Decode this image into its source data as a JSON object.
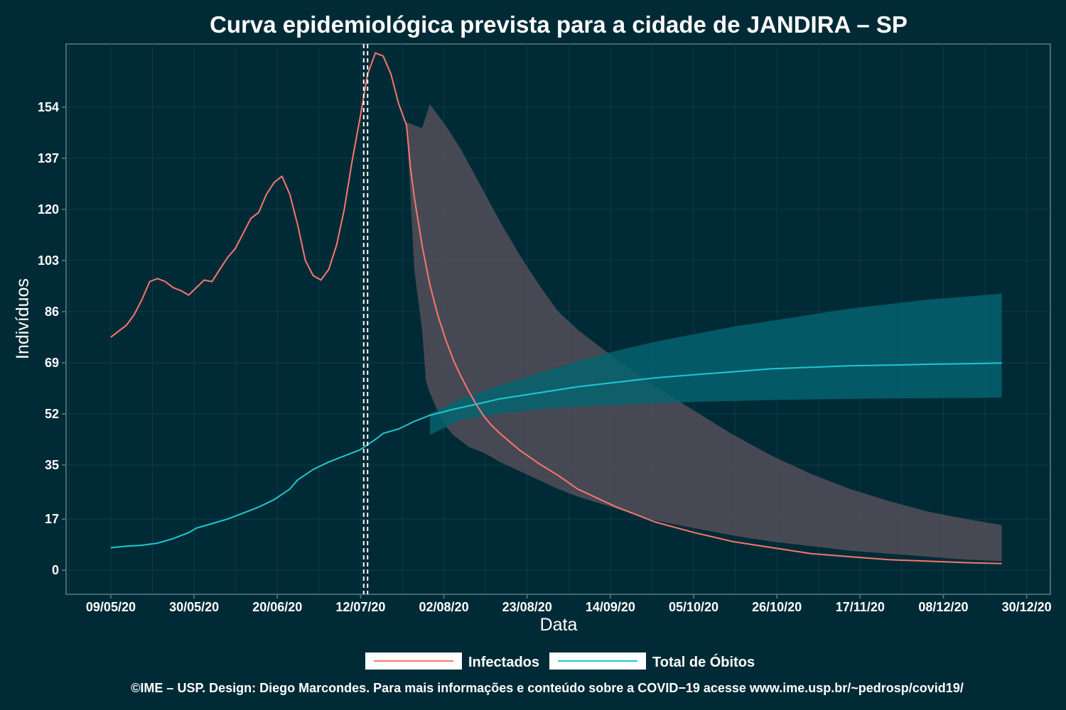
{
  "chart_data": {
    "type": "line",
    "title": "Curva epidemiológica prevista para a cidade de JANDIRA – SP",
    "xlabel": "Data",
    "ylabel": "Indivíduos",
    "x_ticks": [
      "09/05/20",
      "30/05/20",
      "20/06/20",
      "12/07/20",
      "02/08/20",
      "23/08/20",
      "14/09/20",
      "05/10/20",
      "26/10/20",
      "17/11/20",
      "08/12/20",
      "30/12/20"
    ],
    "y_ticks": [
      0,
      17,
      35,
      52,
      69,
      86,
      103,
      120,
      137,
      154
    ],
    "ylim": [
      -8,
      175
    ],
    "xlim_day": [
      -11.5,
      241.5
    ],
    "grid": true,
    "legend_position": "bottom",
    "forecast_start_markers_day": [
      65,
      66
    ],
    "series": [
      {
        "name": "Infectados",
        "color": "#f8766d",
        "points": [
          [
            0,
            77.5
          ],
          [
            2,
            79.5
          ],
          [
            4,
            81.5
          ],
          [
            6,
            85
          ],
          [
            8,
            90
          ],
          [
            10,
            96
          ],
          [
            12,
            97
          ],
          [
            14,
            96
          ],
          [
            16,
            94
          ],
          [
            18,
            93
          ],
          [
            20,
            91.5
          ],
          [
            22,
            94
          ],
          [
            24,
            96.5
          ],
          [
            26,
            96
          ],
          [
            28,
            100
          ],
          [
            30,
            104
          ],
          [
            32,
            107
          ],
          [
            34,
            112
          ],
          [
            36,
            117
          ],
          [
            38,
            119
          ],
          [
            40,
            125
          ],
          [
            42,
            129
          ],
          [
            44,
            131
          ],
          [
            46,
            125
          ],
          [
            48,
            115
          ],
          [
            50,
            103
          ],
          [
            52,
            98
          ],
          [
            54,
            96.5
          ],
          [
            56,
            100
          ],
          [
            58,
            108
          ],
          [
            60,
            120
          ],
          [
            62,
            136
          ],
          [
            64,
            150
          ],
          [
            66,
            165
          ],
          [
            68,
            172
          ],
          [
            70,
            171
          ],
          [
            72,
            165
          ],
          [
            74,
            155
          ],
          [
            76,
            148
          ],
          [
            77,
            134
          ],
          [
            78,
            124
          ],
          [
            80,
            108
          ],
          [
            82,
            95
          ],
          [
            84,
            85
          ],
          [
            86,
            77
          ],
          [
            88,
            70
          ],
          [
            90,
            64.5
          ],
          [
            92,
            59.5
          ],
          [
            94,
            55
          ],
          [
            96,
            51
          ],
          [
            98,
            48
          ],
          [
            100,
            45.5
          ],
          [
            105,
            40
          ],
          [
            110,
            35.5
          ],
          [
            115,
            31.5
          ],
          [
            120,
            27
          ],
          [
            130,
            21
          ],
          [
            140,
            16
          ],
          [
            150,
            12.5
          ],
          [
            160,
            9.5
          ],
          [
            170,
            7.5
          ],
          [
            180,
            5.5
          ],
          [
            190,
            4.5
          ],
          [
            200,
            3.5
          ],
          [
            210,
            3
          ],
          [
            220,
            2.5
          ],
          [
            229,
            2.2
          ]
        ]
      },
      {
        "name": "Total de Óbitos",
        "color": "#1ec8d4",
        "points": [
          [
            0,
            7.5
          ],
          [
            4,
            8
          ],
          [
            8,
            8.3
          ],
          [
            12,
            9
          ],
          [
            16,
            10.5
          ],
          [
            20,
            12.5
          ],
          [
            22,
            14
          ],
          [
            26,
            15.5
          ],
          [
            30,
            17
          ],
          [
            34,
            19
          ],
          [
            38,
            21
          ],
          [
            42,
            23.5
          ],
          [
            46,
            27
          ],
          [
            48,
            30
          ],
          [
            52,
            33.5
          ],
          [
            56,
            36
          ],
          [
            60,
            38
          ],
          [
            64,
            40
          ],
          [
            68,
            43.5
          ],
          [
            70,
            45.5
          ],
          [
            74,
            47
          ],
          [
            78,
            49.5
          ],
          [
            82,
            51.5
          ],
          [
            88,
            53.5
          ],
          [
            95,
            55.5
          ],
          [
            100,
            57
          ],
          [
            110,
            59
          ],
          [
            120,
            61
          ],
          [
            130,
            62.5
          ],
          [
            140,
            64
          ],
          [
            150,
            65
          ],
          [
            160,
            66
          ],
          [
            170,
            67
          ],
          [
            180,
            67.5
          ],
          [
            190,
            68
          ],
          [
            200,
            68.2
          ],
          [
            210,
            68.5
          ],
          [
            220,
            68.7
          ],
          [
            229,
            68.9
          ]
        ]
      }
    ],
    "bands": [
      {
        "name": "Infectados-band",
        "color": "#55505a",
        "upper": [
          [
            76,
            149
          ],
          [
            78,
            148
          ],
          [
            80,
            147
          ],
          [
            82,
            155
          ],
          [
            86,
            148
          ],
          [
            90,
            140
          ],
          [
            95,
            128
          ],
          [
            100,
            116
          ],
          [
            105,
            105
          ],
          [
            110,
            95
          ],
          [
            115,
            86
          ],
          [
            120,
            80
          ],
          [
            130,
            70
          ],
          [
            140,
            61
          ],
          [
            150,
            53
          ],
          [
            160,
            45
          ],
          [
            170,
            38
          ],
          [
            180,
            32
          ],
          [
            190,
            27
          ],
          [
            200,
            23
          ],
          [
            210,
            19.5
          ],
          [
            220,
            17
          ],
          [
            229,
            15
          ]
        ],
        "lower": [
          [
            76,
            149
          ],
          [
            78,
            100
          ],
          [
            80,
            80
          ],
          [
            81,
            63
          ],
          [
            82,
            59
          ],
          [
            84,
            53
          ],
          [
            86,
            48
          ],
          [
            88,
            45
          ],
          [
            90,
            43
          ],
          [
            92,
            41
          ],
          [
            94,
            40
          ],
          [
            96,
            39
          ],
          [
            98,
            37.5
          ],
          [
            100,
            36
          ],
          [
            105,
            33
          ],
          [
            110,
            30
          ],
          [
            115,
            27
          ],
          [
            120,
            24.5
          ],
          [
            130,
            20.5
          ],
          [
            140,
            16.5
          ],
          [
            150,
            14
          ],
          [
            160,
            11.5
          ],
          [
            170,
            9.5
          ],
          [
            180,
            8
          ],
          [
            190,
            6.5
          ],
          [
            200,
            5.5
          ],
          [
            210,
            4.5
          ],
          [
            220,
            3.5
          ],
          [
            229,
            3
          ]
        ]
      },
      {
        "name": "Obitos-band",
        "color": "#046470",
        "upper": [
          [
            82,
            52
          ],
          [
            90,
            57
          ],
          [
            100,
            61.5
          ],
          [
            110,
            65.5
          ],
          [
            120,
            69.5
          ],
          [
            130,
            73
          ],
          [
            140,
            76
          ],
          [
            150,
            78.5
          ],
          [
            160,
            81
          ],
          [
            170,
            83
          ],
          [
            180,
            85
          ],
          [
            190,
            87
          ],
          [
            200,
            88.5
          ],
          [
            210,
            90
          ],
          [
            220,
            91
          ],
          [
            229,
            92
          ]
        ],
        "lower": [
          [
            82,
            45
          ],
          [
            90,
            50
          ],
          [
            100,
            52
          ],
          [
            110,
            53.5
          ],
          [
            120,
            54.5
          ],
          [
            130,
            55
          ],
          [
            140,
            55.5
          ],
          [
            150,
            56
          ],
          [
            160,
            56.3
          ],
          [
            170,
            56.6
          ],
          [
            180,
            56.8
          ],
          [
            190,
            57
          ],
          [
            200,
            57.1
          ],
          [
            210,
            57.2
          ],
          [
            220,
            57.3
          ],
          [
            229,
            57.4
          ]
        ]
      }
    ]
  },
  "legend": {
    "items": [
      {
        "label": "Infectados",
        "color": "#f8766d"
      },
      {
        "label": "Total de Óbitos",
        "color": "#1ec8d4"
      }
    ]
  },
  "caption": "©IME – USP. Design: Diego Marcondes. Para mais informações e conteúdo sobre a COVID−19 acesse www.ime.usp.br/~pedrosp/covid19/"
}
